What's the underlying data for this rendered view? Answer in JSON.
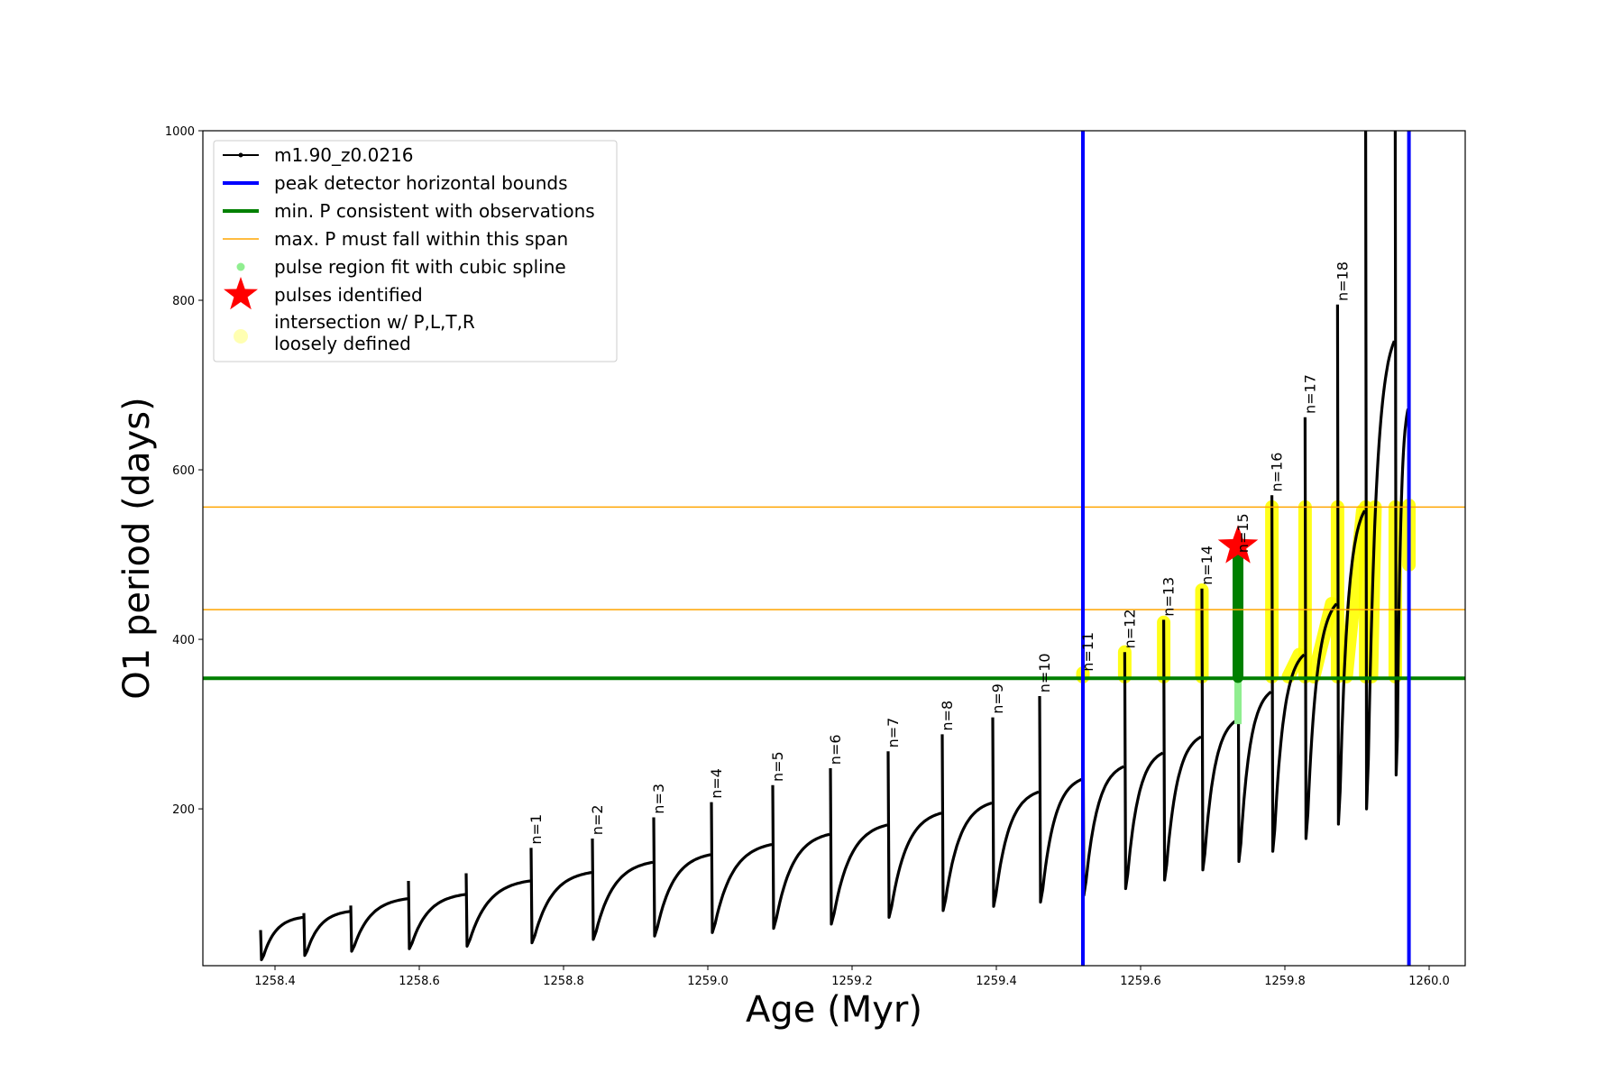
{
  "chart_data": {
    "type": "line",
    "xlabel": "Age (Myr)",
    "ylabel": "O1 period (days)",
    "xlim": [
      1258.3,
      1260.05
    ],
    "ylim": [
      15,
      1000
    ],
    "xticks": [
      "1258.4",
      "1258.6",
      "1258.8",
      "1259.0",
      "1259.2",
      "1259.4",
      "1259.6",
      "1259.8",
      "1260.0"
    ],
    "yticks": [
      "200",
      "400",
      "600",
      "800",
      "1000"
    ],
    "legend_position": "upper-left",
    "legend": [
      {
        "key": "model",
        "label": "m1.90_z0.0216",
        "color": "#000000"
      },
      {
        "key": "peak",
        "label": "peak detector horizontal bounds",
        "color": "#0000ff"
      },
      {
        "key": "minp",
        "label": "min. P consistent with observations",
        "color": "#008000"
      },
      {
        "key": "maxp",
        "label": "max. P must fall within this span",
        "color": "#ffa500"
      },
      {
        "key": "spline",
        "label": "pulse region fit with cubic spline",
        "color": "#90ee90"
      },
      {
        "key": "pulses",
        "label": "pulses identified",
        "color": "#ff0000"
      },
      {
        "key": "intersect",
        "label": "intersection w/ P,L,T,R",
        "label2": "loosely defined",
        "color": "#ffff00"
      }
    ],
    "series_name": "m1.90_z0.0216",
    "cycles": [
      {
        "x0": 1258.38,
        "x1": 1258.44,
        "min": 22,
        "top": 72,
        "spike": 57
      },
      {
        "x0": 1258.44,
        "x1": 1258.505,
        "min": 27,
        "top": 79,
        "spike": 77
      },
      {
        "x0": 1258.505,
        "x1": 1258.585,
        "min": 32,
        "top": 94,
        "spike": 86
      },
      {
        "x0": 1258.585,
        "x1": 1258.665,
        "min": 35,
        "top": 99,
        "spike": 115
      },
      {
        "x0": 1258.665,
        "x1": 1258.755,
        "min": 38,
        "top": 115,
        "spike": 124
      },
      {
        "x0": 1258.755,
        "x1": 1258.84,
        "min": 42,
        "top": 125,
        "spike": 154
      },
      {
        "x0": 1258.84,
        "x1": 1258.925,
        "min": 46,
        "top": 137,
        "spike": 165
      },
      {
        "x0": 1258.925,
        "x1": 1259.005,
        "min": 50,
        "top": 146,
        "spike": 190
      },
      {
        "x0": 1259.005,
        "x1": 1259.09,
        "min": 54,
        "top": 158,
        "spike": 208
      },
      {
        "x0": 1259.09,
        "x1": 1259.17,
        "min": 59,
        "top": 170,
        "spike": 228
      },
      {
        "x0": 1259.17,
        "x1": 1259.25,
        "min": 64,
        "top": 181,
        "spike": 248
      },
      {
        "x0": 1259.25,
        "x1": 1259.325,
        "min": 72,
        "top": 195,
        "spike": 268
      },
      {
        "x0": 1259.325,
        "x1": 1259.395,
        "min": 80,
        "top": 207,
        "spike": 288
      },
      {
        "x0": 1259.395,
        "x1": 1259.46,
        "min": 85,
        "top": 220,
        "spike": 308
      },
      {
        "x0": 1259.46,
        "x1": 1259.52,
        "min": 90,
        "top": 235,
        "spike": 333
      },
      {
        "x0": 1259.52,
        "x1": 1259.578,
        "min": 98,
        "top": 250,
        "spike": 358
      },
      {
        "x0": 1259.578,
        "x1": 1259.632,
        "min": 106,
        "top": 266,
        "spike": 385
      },
      {
        "x0": 1259.632,
        "x1": 1259.685,
        "min": 116,
        "top": 285,
        "spike": 423
      },
      {
        "x0": 1259.685,
        "x1": 1259.735,
        "min": 128,
        "top": 305,
        "spike": 460
      },
      {
        "x0": 1259.735,
        "x1": 1259.782,
        "min": 138,
        "top": 338,
        "spike": 498
      },
      {
        "x0": 1259.782,
        "x1": 1259.828,
        "min": 150,
        "top": 382,
        "spike": 570
      },
      {
        "x0": 1259.828,
        "x1": 1259.873,
        "min": 165,
        "top": 442,
        "spike": 662
      },
      {
        "x0": 1259.873,
        "x1": 1259.912,
        "min": 182,
        "top": 552,
        "spike": 795
      },
      {
        "x0": 1259.912,
        "x1": 1259.953,
        "min": 200,
        "top": 752,
        "spike": 1000
      },
      {
        "x0": 1259.953,
        "x1": 1259.972,
        "min": 240,
        "top": 672,
        "spike": 1000
      }
    ],
    "pulse_labels": [
      {
        "text": "n=1",
        "x": 1258.755,
        "y": 158
      },
      {
        "text": "n=2",
        "x": 1258.84,
        "y": 169
      },
      {
        "text": "n=3",
        "x": 1258.925,
        "y": 194
      },
      {
        "text": "n=4",
        "x": 1259.005,
        "y": 212
      },
      {
        "text": "n=5",
        "x": 1259.09,
        "y": 232
      },
      {
        "text": "n=6",
        "x": 1259.17,
        "y": 252
      },
      {
        "text": "n=7",
        "x": 1259.25,
        "y": 272
      },
      {
        "text": "n=8",
        "x": 1259.325,
        "y": 292
      },
      {
        "text": "n=9",
        "x": 1259.395,
        "y": 312
      },
      {
        "text": "n=10",
        "x": 1259.46,
        "y": 337
      },
      {
        "text": "n=11",
        "x": 1259.52,
        "y": 362
      },
      {
        "text": "n=12",
        "x": 1259.578,
        "y": 389
      },
      {
        "text": "n=13",
        "x": 1259.632,
        "y": 427
      },
      {
        "text": "n=14",
        "x": 1259.685,
        "y": 464
      },
      {
        "text": "n=15",
        "x": 1259.735,
        "y": 502
      },
      {
        "text": "n=16",
        "x": 1259.782,
        "y": 574
      },
      {
        "text": "n=17",
        "x": 1259.828,
        "y": 666
      },
      {
        "text": "n=18",
        "x": 1259.873,
        "y": 799
      }
    ],
    "peak_bounds_x": [
      1259.52,
      1259.972
    ],
    "min_period": 354,
    "max_period_span": [
      435,
      556
    ],
    "intersections": [
      {
        "x0": 1259.52,
        "x1": 1259.52,
        "y0": 356,
        "y1": 360
      },
      {
        "x0": 1259.578,
        "x1": 1259.578,
        "y0": 356,
        "y1": 385
      },
      {
        "x0": 1259.632,
        "x1": 1259.632,
        "y0": 356,
        "y1": 420
      },
      {
        "x0": 1259.685,
        "x1": 1259.685,
        "y0": 356,
        "y1": 458
      },
      {
        "x0": 1259.782,
        "x1": 1259.782,
        "y0": 356,
        "y1": 556
      },
      {
        "x0": 1259.828,
        "x1": 1259.828,
        "y0": 356,
        "y1": 556
      },
      {
        "x0": 1259.873,
        "x1": 1259.873,
        "y0": 356,
        "y1": 556
      },
      {
        "x0": 1259.912,
        "x1": 1259.912,
        "y0": 356,
        "y1": 556
      },
      {
        "x0": 1259.953,
        "x1": 1259.953,
        "y0": 356,
        "y1": 556
      },
      {
        "x0": 1259.805,
        "x1": 1259.82,
        "y0": 356,
        "y1": 382
      },
      {
        "x0": 1259.84,
        "x1": 1259.865,
        "y0": 356,
        "y1": 442
      },
      {
        "x0": 1259.885,
        "x1": 1259.908,
        "y0": 356,
        "y1": 552
      },
      {
        "x0": 1259.92,
        "x1": 1259.925,
        "y0": 356,
        "y1": 556
      },
      {
        "x0": 1259.972,
        "x1": 1259.972,
        "y0": 488,
        "y1": 558
      }
    ],
    "spline_fit": {
      "x": 1259.735,
      "y0": 300,
      "y1": 500
    },
    "pulse_identified": {
      "x": 1259.735,
      "y": 510
    }
  }
}
